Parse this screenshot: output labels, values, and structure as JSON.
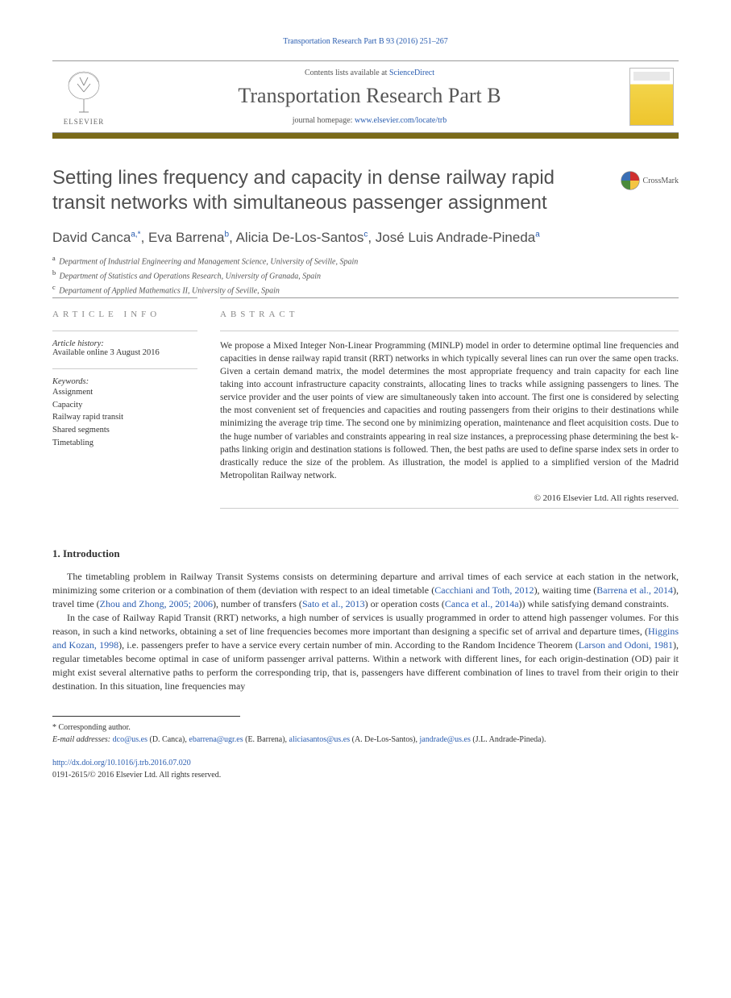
{
  "citation": "Transportation Research Part B 93 (2016) 251–267",
  "masthead": {
    "contents_prefix": "Contents lists available at ",
    "contents_link": "ScienceDirect",
    "journal": "Transportation Research Part B",
    "homepage_prefix": "journal homepage: ",
    "homepage_url": "www.elsevier.com/locate/trb",
    "publisher": "ELSEVIER"
  },
  "title": "Setting lines frequency and capacity in dense railway rapid transit networks with simultaneous passenger assignment",
  "crossmark": "CrossMark",
  "authors_html": "David Canca<sup>a,*</sup>, Eva Barrena<sup>b</sup>, Alicia De-Los-Santos<sup>c</sup>, José Luis Andrade-Pineda<sup>a</sup>",
  "affiliations": [
    {
      "sup": "a",
      "text": "Department of Industrial Engineering and Management Science, University of Seville, Spain"
    },
    {
      "sup": "b",
      "text": "Department of Statistics and Operations Research, University of Granada, Spain"
    },
    {
      "sup": "c",
      "text": "Departament of Applied Mathematics II, University of Seville, Spain"
    }
  ],
  "info": {
    "heading": "ARTICLE INFO",
    "history_label": "Article history:",
    "history_value": "Available online 3 August 2016",
    "keywords_label": "Keywords:",
    "keywords": [
      "Assignment",
      "Capacity",
      "Railway rapid transit",
      "Shared segments",
      "Timetabling"
    ]
  },
  "abstract": {
    "heading": "ABSTRACT",
    "text": "We propose a Mixed Integer Non-Linear Programming (MINLP) model in order to determine optimal line frequencies and capacities in dense railway rapid transit (RRT) networks in which typically several lines can run over the same open tracks. Given a certain demand matrix, the model determines the most appropriate frequency and train capacity for each line taking into account infrastructure capacity constraints, allocating lines to tracks while assigning passengers to lines. The service provider and the user points of view are simultaneously taken into account. The first one is considered by selecting the most convenient set of frequencies and capacities and routing passengers from their origins to their destinations while minimizing the average trip time. The second one by minimizing operation, maintenance and fleet acquisition costs. Due to the huge number of variables and constraints appearing in real size instances, a preprocessing phase determining the best k-paths linking origin and destination stations is followed. Then, the best paths are used to define sparse index sets in order to drastically reduce the size of the problem. As illustration, the model is applied to a simplified version of the Madrid Metropolitan Railway network.",
    "copyright": "© 2016 Elsevier Ltd. All rights reserved."
  },
  "section1": {
    "heading": "1. Introduction",
    "p1_parts": [
      "The timetabling problem in Railway Transit Systems consists on determining departure and arrival times of each service at each station in the network, minimizing some criterion or a combination of them (deviation with respect to an ideal timetable (",
      "Cacchiani and Toth, 2012",
      "), waiting time (",
      "Barrena et al., 2014",
      "), travel time (",
      "Zhou and Zhong, 2005; 2006",
      "), number of transfers (",
      "Sato et al., 2013",
      ") or operation costs (",
      "Canca et al., 2014a",
      ")) while satisfying demand constraints."
    ],
    "p2_parts": [
      "In the case of Railway Rapid Transit (RRT) networks, a high number of services is usually programmed in order to attend high passenger volumes. For this reason, in such a kind networks, obtaining a set of line frequencies becomes more important than designing a specific set of arrival and departure times, (",
      "Higgins and Kozan, 1998",
      "), i.e. passengers prefer to have a service every certain number of min. According to the Random Incidence Theorem (",
      "Larson and Odoni, 1981",
      "), regular timetables become optimal in case of uniform passenger arrival patterns. Within a network with different lines, for each origin-destination (OD) pair it might exist several alternative paths to perform the corresponding trip, that is, passengers have different combination of lines to travel from their origin to their destination. In this situation, line frequencies may"
    ]
  },
  "footnotes": {
    "corr": "* Corresponding author.",
    "emails_label": "E-mail addresses: ",
    "emails": [
      {
        "addr": "dco@us.es",
        "who": "(D. Canca), "
      },
      {
        "addr": "ebarrena@ugr.es",
        "who": "(E. Barrena), "
      },
      {
        "addr": "aliciasantos@us.es",
        "who": "(A. De-Los-Santos), "
      },
      {
        "addr": "jandrade@us.es",
        "who": "(J.L. Andrade-Pineda)."
      }
    ]
  },
  "doi": {
    "url": "http://dx.doi.org/10.1016/j.trb.2016.07.020",
    "issn_line": "0191-2615/© 2016 Elsevier Ltd. All rights reserved."
  },
  "colors": {
    "link": "#2a5db0",
    "gold_bar": "#7a6a1a",
    "title_gray": "#4f4f4f"
  }
}
